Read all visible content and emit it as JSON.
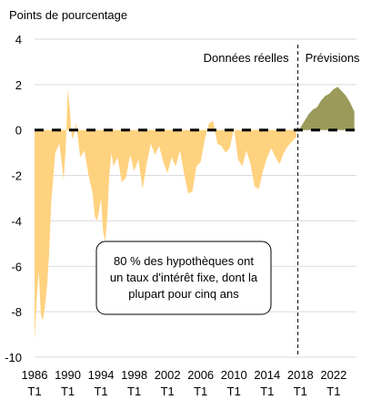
{
  "chart_data": {
    "type": "area",
    "ylabel": "Points de pourcentage",
    "ylim": [
      -10,
      4
    ],
    "yticks": [
      4,
      2,
      0,
      -2,
      -4,
      -6,
      -8,
      -10
    ],
    "grid": true,
    "x_tick_labels": [
      {
        "x": 1986,
        "year": "1986",
        "q": "T1"
      },
      {
        "x": 1990,
        "year": "1990",
        "q": "T1"
      },
      {
        "x": 1994,
        "year": "1994",
        "q": "T1"
      },
      {
        "x": 1998,
        "year": "1998",
        "q": "T1"
      },
      {
        "x": 2002,
        "year": "2002",
        "q": "T1"
      },
      {
        "x": 2006,
        "year": "2006",
        "q": "T1"
      },
      {
        "x": 2010,
        "year": "2010",
        "q": "T1"
      },
      {
        "x": 2014,
        "year": "2014",
        "q": "T1"
      },
      {
        "x": 2018,
        "year": "2018",
        "q": "T1"
      },
      {
        "x": 2022,
        "year": "2022",
        "q": "T1"
      }
    ],
    "xlim": [
      1986,
      2024.75
    ],
    "forecast_start": 2017.7,
    "annotations": {
      "actual_label": "Données réelles",
      "forecast_label": "Prévisions",
      "box_lines": [
        "80 % des hypothèques ont",
        "un taux d'intérêt fixe, dont la",
        "plupart pour cinq ans"
      ]
    },
    "colors": {
      "actual": "#FFD27F",
      "forecast": "#9A9A5A",
      "zero_line": "#000000",
      "grid": "#d9d9d9",
      "divider": "#000000"
    },
    "series": [
      {
        "kind": "actual",
        "x": [
          1986.0,
          1986.25,
          1986.5,
          1986.75,
          1987.0,
          1987.25,
          1987.5,
          1987.75,
          1988.0,
          1988.5,
          1989.0,
          1989.5,
          1989.75,
          1990.0,
          1990.25,
          1990.5,
          1990.75,
          1991.0,
          1991.5,
          1992.0,
          1992.5,
          1993.0,
          1993.25,
          1993.5,
          1993.75,
          1994.0,
          1994.25,
          1994.5,
          1994.75,
          1995.0,
          1995.25,
          1995.5,
          1996.0,
          1996.5,
          1997.0,
          1997.5,
          1998.0,
          1998.5,
          1999.0,
          1999.5,
          2000.0,
          2000.5,
          2001.0,
          2001.5,
          2002.0,
          2002.5,
          2003.0,
          2003.5,
          2004.0,
          2004.5,
          2005.0,
          2005.5,
          2006.0,
          2006.5,
          2007.0,
          2007.5,
          2008.0,
          2008.5,
          2009.0,
          2009.5,
          2010.0,
          2010.5,
          2011.0,
          2011.5,
          2012.0,
          2012.5,
          2013.0,
          2013.5,
          2014.0,
          2014.5,
          2015.0,
          2015.5,
          2016.0,
          2016.5,
          2017.0,
          2017.5
        ],
        "y": [
          -9.3,
          -7.5,
          -6.2,
          -8.1,
          -8.4,
          -7.8,
          -6.9,
          -5.5,
          -3.2,
          -1.0,
          -0.6,
          -2.2,
          -0.8,
          1.8,
          0.9,
          -0.4,
          -0.2,
          0.3,
          -1.2,
          -0.9,
          -2.0,
          -2.8,
          -3.8,
          -4.0,
          -3.6,
          -3.0,
          -4.5,
          -4.9,
          -3.9,
          -2.0,
          -1.0,
          -1.6,
          -1.2,
          -2.3,
          -2.1,
          -1.1,
          -1.8,
          -1.3,
          -2.6,
          -1.5,
          -0.6,
          -1.1,
          -0.7,
          -1.4,
          -1.9,
          -1.2,
          -1.6,
          -0.9,
          -1.9,
          -2.8,
          -2.7,
          -1.6,
          -1.4,
          -0.4,
          0.3,
          0.4,
          -0.6,
          -0.7,
          -1.0,
          -0.8,
          0.1,
          -1.3,
          -1.6,
          -0.9,
          -1.5,
          -2.5,
          -2.6,
          -1.8,
          -1.2,
          -0.8,
          -1.2,
          -1.5,
          -1.0,
          -0.7,
          -0.5,
          -0.3
        ]
      },
      {
        "kind": "forecast",
        "x": [
          2017.75,
          2018.0,
          2018.5,
          2019.0,
          2019.5,
          2020.0,
          2020.5,
          2021.0,
          2021.5,
          2022.0,
          2022.5,
          2023.0,
          2023.5,
          2024.0,
          2024.5
        ],
        "y": [
          0.0,
          0.1,
          0.4,
          0.7,
          0.9,
          1.0,
          1.3,
          1.5,
          1.6,
          1.8,
          1.9,
          1.7,
          1.5,
          1.2,
          0.8
        ]
      }
    ]
  }
}
